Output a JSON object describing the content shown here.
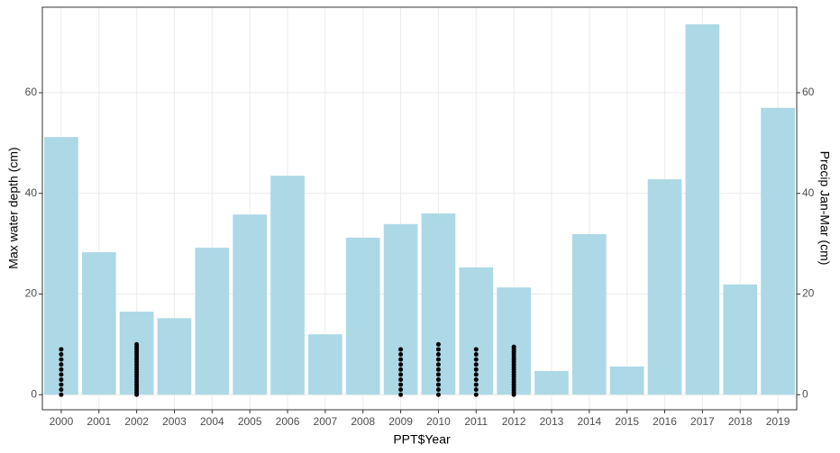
{
  "chart_data": {
    "type": "bar",
    "x_label": "PPT$Year",
    "y_label": "Max water depth (cm)",
    "y2_label": "Precip Jan-Mar (cm)",
    "categories": [
      "2000",
      "2001",
      "2002",
      "2003",
      "2004",
      "2005",
      "2006",
      "2007",
      "2008",
      "2009",
      "2010",
      "2011",
      "2012",
      "2013",
      "2014",
      "2015",
      "2016",
      "2017",
      "2018",
      "2019"
    ],
    "values": [
      51.2,
      28.3,
      16.5,
      15.2,
      29.2,
      35.8,
      43.5,
      12.0,
      31.2,
      33.9,
      36.0,
      25.3,
      21.3,
      4.7,
      31.9,
      5.6,
      42.8,
      73.6,
      21.9,
      57.0
    ],
    "axis": "y2",
    "color": "#add8e6",
    "points": {
      "color": "#000000",
      "x": [
        "2000",
        "2000",
        "2000",
        "2000",
        "2000",
        "2000",
        "2000",
        "2000",
        "2000",
        "2000",
        "2002",
        "2002",
        "2002",
        "2002",
        "2002",
        "2002",
        "2002",
        "2002",
        "2002",
        "2002",
        "2002",
        "2002",
        "2002",
        "2002",
        "2002",
        "2002",
        "2002",
        "2002",
        "2002",
        "2002",
        "2002",
        "2009",
        "2009",
        "2009",
        "2009",
        "2009",
        "2009",
        "2009",
        "2009",
        "2009",
        "2009",
        "2010",
        "2010",
        "2010",
        "2010",
        "2010",
        "2010",
        "2010",
        "2010",
        "2010",
        "2010",
        "2010",
        "2011",
        "2011",
        "2011",
        "2011",
        "2011",
        "2011",
        "2011",
        "2011",
        "2011",
        "2011",
        "2012",
        "2012",
        "2012",
        "2012",
        "2012",
        "2012",
        "2012",
        "2012",
        "2012",
        "2012",
        "2012",
        "2012",
        "2012",
        "2012",
        "2012",
        "2012",
        "2012",
        "2012",
        "2012",
        "2012"
      ],
      "values": [
        0,
        1,
        2,
        3,
        4,
        5,
        6,
        7,
        8,
        9,
        0,
        0.5,
        1,
        1.5,
        2,
        2.5,
        3,
        3.5,
        4,
        4.5,
        5,
        5.5,
        6,
        6.5,
        7,
        7.5,
        8,
        8.5,
        9,
        9.5,
        10,
        0,
        1,
        2,
        3,
        4,
        5,
        6,
        7,
        8,
        9,
        0,
        1,
        2,
        3,
        4,
        5,
        6,
        7,
        8,
        9,
        10,
        0,
        1,
        2,
        3,
        4,
        5,
        6,
        7,
        8,
        9,
        0,
        0.5,
        1,
        1.5,
        2,
        2.5,
        3,
        3.5,
        4,
        4.5,
        5,
        5.5,
        6,
        6.5,
        7,
        7.5,
        8,
        8.5,
        9,
        9.5
      ]
    },
    "ylim": [
      -3.0,
      77.0
    ],
    "yticks": [
      0,
      20,
      40,
      60
    ],
    "y2lim": [
      -3.0,
      77.0
    ],
    "y2ticks": [
      0,
      20,
      40,
      60
    ],
    "grid": true
  }
}
